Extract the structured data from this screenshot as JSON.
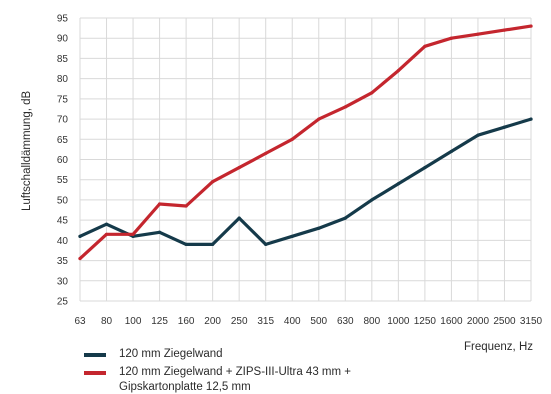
{
  "chart_data": {
    "type": "line",
    "title": "",
    "xlabel": "Frequenz, Hz",
    "ylabel": "Luftschalldämmung, dB",
    "categories": [
      "63",
      "80",
      "100",
      "125",
      "160",
      "200",
      "250",
      "315",
      "400",
      "500",
      "630",
      "800",
      "1000",
      "1250",
      "1600",
      "2000",
      "2500",
      "3150"
    ],
    "yticks": [
      "25",
      "30",
      "35",
      "40",
      "45",
      "50",
      "55",
      "60",
      "65",
      "70",
      "75",
      "80",
      "85",
      "90",
      "95"
    ],
    "ylim": [
      25,
      95
    ],
    "grid": true,
    "legend_position": "bottom-left",
    "series": [
      {
        "name": "120 mm Ziegelwand",
        "color": "#153A4A",
        "values": [
          41,
          44,
          41,
          42,
          39,
          39,
          45.5,
          39,
          41,
          43,
          45.5,
          50,
          54,
          58,
          62,
          66,
          68,
          70
        ]
      },
      {
        "name": "120 mm Ziegelwand + ZIPS-III-Ultra 43 mm +\nGipskartonplatte 12,5 mm",
        "color": "#C4262E",
        "values": [
          35.5,
          41.5,
          41.5,
          49,
          48.5,
          54.5,
          58,
          61.5,
          65,
          70,
          73,
          76.5,
          82,
          88,
          90,
          91,
          92,
          93
        ]
      }
    ]
  }
}
